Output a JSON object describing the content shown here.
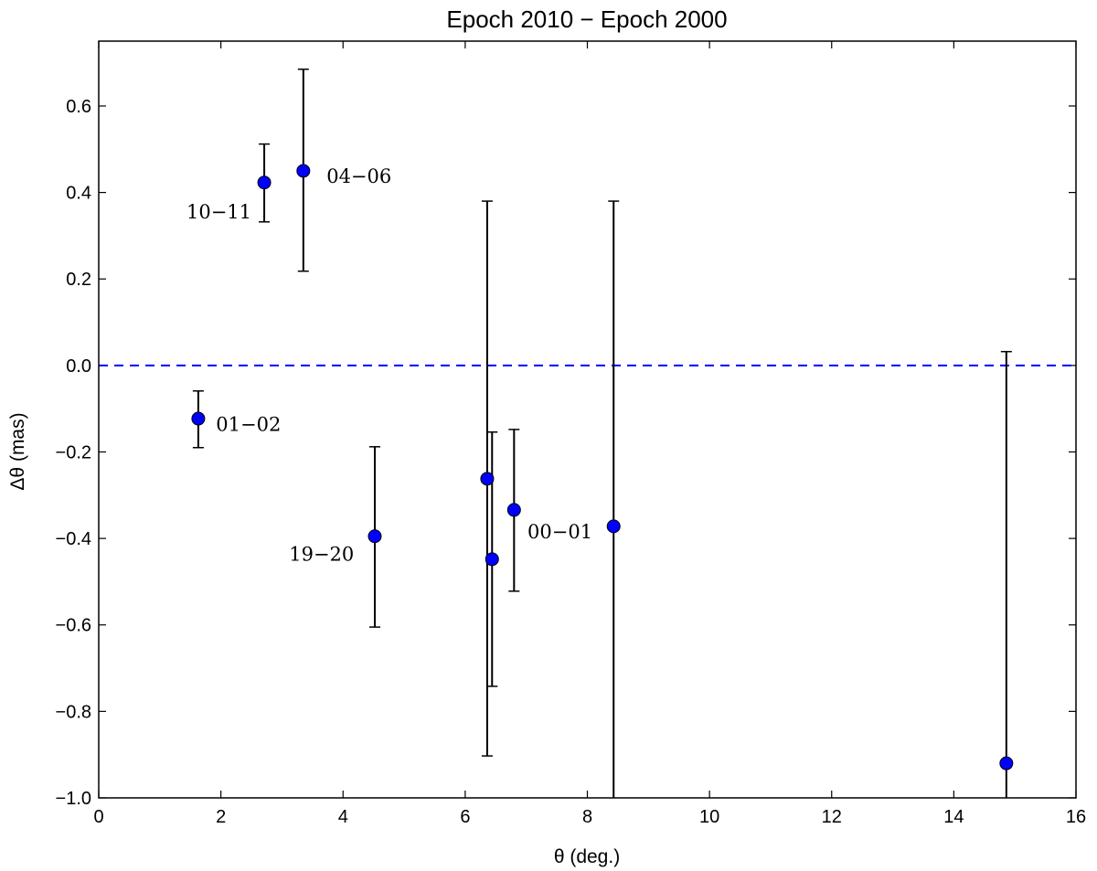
{
  "chart_data": {
    "type": "scatter",
    "title": "Epoch 2010 − Epoch 2000",
    "xlabel": "θ (deg.)",
    "ylabel": "Δθ (mas)",
    "xlim": [
      0,
      16
    ],
    "ylim": [
      -1.0,
      0.75
    ],
    "xticks": [
      0,
      2,
      4,
      6,
      8,
      10,
      12,
      14,
      16
    ],
    "xtick_labels": [
      "0",
      "2",
      "4",
      "6",
      "8",
      "10",
      "12",
      "14",
      "16"
    ],
    "yticks": [
      -1.0,
      -0.8,
      -0.6,
      -0.4,
      -0.2,
      0.0,
      0.2,
      0.4,
      0.6
    ],
    "ytick_labels": [
      "−1.0",
      "−0.8",
      "−0.6",
      "−0.4",
      "−0.2",
      "0.0",
      "0.2",
      "0.4",
      "0.6"
    ],
    "grid": false,
    "reference_line": {
      "y": 0.0,
      "style": "dashed",
      "color": "#0000ff"
    },
    "marker_color": "#0000ff",
    "points": [
      {
        "x": 1.63,
        "y": -0.123,
        "err_low": -0.19,
        "err_high": -0.059
      },
      {
        "x": 2.71,
        "y": 0.423,
        "err_low": 0.332,
        "err_high": 0.512
      },
      {
        "x": 3.35,
        "y": 0.45,
        "err_low": 0.218,
        "err_high": 0.685
      },
      {
        "x": 4.52,
        "y": -0.395,
        "err_low": -0.605,
        "err_high": -0.188
      },
      {
        "x": 6.36,
        "y": -0.262,
        "err_low": -0.903,
        "err_high": 0.38
      },
      {
        "x": 6.44,
        "y": -0.448,
        "err_low": -0.742,
        "err_high": -0.154
      },
      {
        "x": 6.8,
        "y": -0.334,
        "err_low": -0.522,
        "err_high": -0.148
      },
      {
        "x": 8.43,
        "y": -0.372,
        "err_low": -1.2,
        "err_high": 0.38
      },
      {
        "x": 14.86,
        "y": -0.92,
        "err_low": -1.2,
        "err_high": 0.032
      }
    ],
    "annotations": [
      {
        "text": "01−02",
        "x": 1.92,
        "y": -0.137,
        "anchor": "start"
      },
      {
        "text": "10−11",
        "x": 2.5,
        "y": 0.355,
        "anchor": "end"
      },
      {
        "text": "04−06",
        "x": 3.73,
        "y": 0.437,
        "anchor": "start"
      },
      {
        "text": "19−20",
        "x": 4.18,
        "y": -0.437,
        "anchor": "end"
      },
      {
        "text": "00−01",
        "x": 7.02,
        "y": -0.385,
        "anchor": "start"
      }
    ]
  }
}
